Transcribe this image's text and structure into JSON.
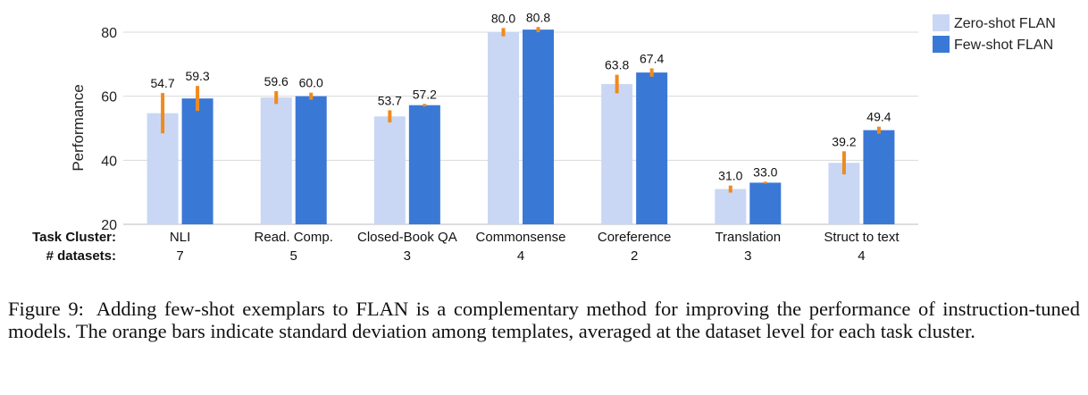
{
  "chart_data": {
    "type": "bar",
    "ylabel": "Performance",
    "ylim": [
      20,
      85
    ],
    "yticks": [
      20,
      40,
      60,
      80
    ],
    "grid": true,
    "legend_position": "top-right",
    "row_headers": {
      "task": "Task Cluster:",
      "datasets": "# datasets:"
    },
    "categories": [
      "NLI",
      "Read. Comp.",
      "Closed-Book QA",
      "Commonsense",
      "Coreference",
      "Translation",
      "Struct to text"
    ],
    "dataset_counts": [
      "7",
      "5",
      "3",
      "4",
      "2",
      "3",
      "4"
    ],
    "series": [
      {
        "name": "Zero-shot FLAN",
        "color": "#c9d7f5",
        "values": [
          54.7,
          59.6,
          53.7,
          80.0,
          63.8,
          31.0,
          39.2
        ],
        "labels": [
          "54.7",
          "59.6",
          "53.7",
          "80.0",
          "63.8",
          "31.0",
          "39.2"
        ],
        "std": [
          6.3,
          2.0,
          1.9,
          1.3,
          2.9,
          1.1,
          3.6
        ]
      },
      {
        "name": "Few-shot FLAN",
        "color": "#3a78d6",
        "values": [
          59.3,
          60.0,
          57.2,
          80.8,
          67.4,
          33.0,
          49.4
        ],
        "labels": [
          "59.3",
          "60.0",
          "57.2",
          "80.8",
          "67.4",
          "33.0",
          "49.4"
        ],
        "std": [
          3.9,
          1.1,
          0.4,
          0.8,
          1.3,
          0.3,
          1.1
        ]
      }
    ],
    "error_bar_color": "#f08a1c"
  },
  "caption": {
    "label": "Figure 9:",
    "text": "Adding few-shot exemplars to FLAN is a complementary method for improving the performance of instruction-tuned models. The orange bars indicate standard deviation among templates, averaged at the dataset level for each task cluster."
  }
}
